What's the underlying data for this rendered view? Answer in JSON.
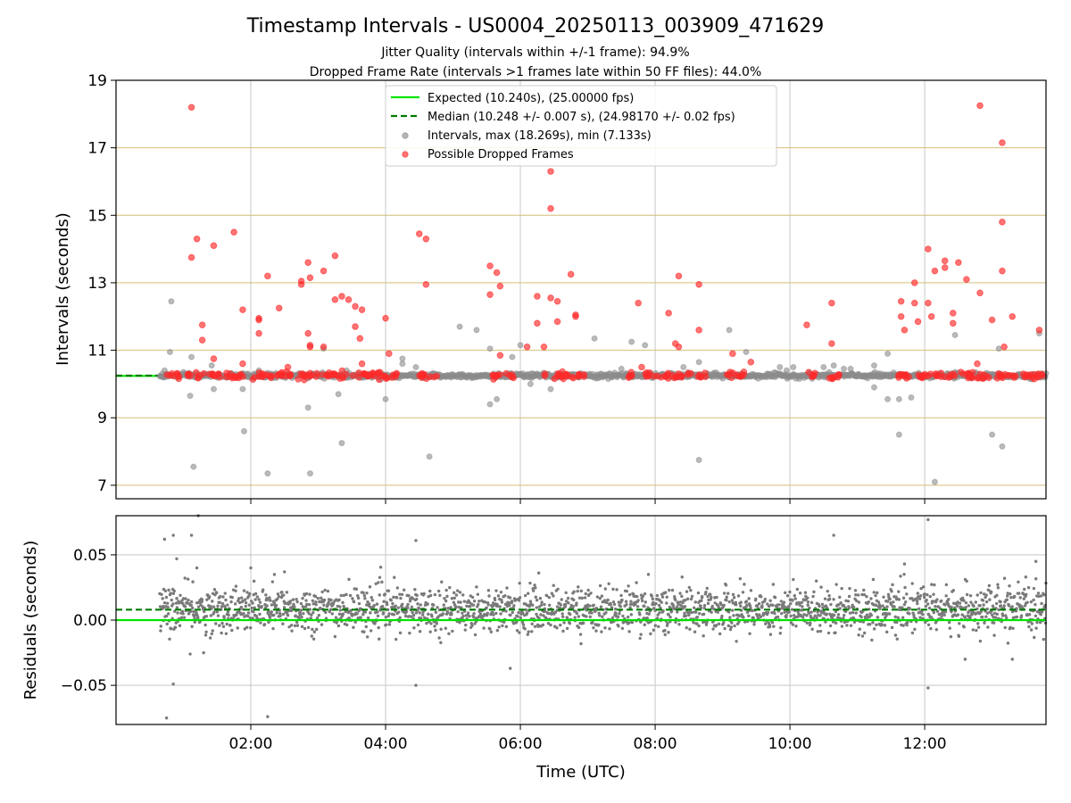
{
  "chart_data": {
    "type": "scatter",
    "title": "Timestamp Intervals - US0004_20250113_003909_471629",
    "subtitles": [
      "Jitter Quality (intervals within +/-1 frame): 94.9%",
      "Dropped Frame Rate (intervals >1 frames late within 50 FF files): 44.0%"
    ],
    "xlabel": "Time (UTC)",
    "x_ticks": [
      "02:00",
      "04:00",
      "06:00",
      "08:00",
      "10:00",
      "12:00"
    ],
    "x_tick_hours": [
      2,
      4,
      6,
      8,
      10,
      12
    ],
    "xlim_hours": [
      0,
      13.8
    ],
    "data_start_hour": 0.65,
    "top_panel": {
      "ylabel": "Intervals (seconds)",
      "ylim": [
        6.6,
        19
      ],
      "y_ticks": [
        "7",
        "9",
        "11",
        "13",
        "15",
        "17",
        "19"
      ],
      "y_tick_values": [
        7,
        9,
        11,
        13,
        15,
        17,
        19
      ],
      "grid": true,
      "hline_color": "#d4be7a",
      "expected_value": 10.24,
      "median_value": 10.248,
      "legend": [
        {
          "label": "Expected (10.240s), (25.00000 fps)",
          "style": "line",
          "color": "#00e400"
        },
        {
          "label": "Median (10.248 +/- 0.007 s), (24.98170 +/- 0.02 fps)",
          "style": "dashed",
          "color": "#007a00"
        },
        {
          "label": "Intervals, max (18.269s), min (7.133s)",
          "style": "dot",
          "color": "#8c8c8c"
        },
        {
          "label": "Possible Dropped Frames",
          "style": "dot",
          "color": "#ff2a2a"
        }
      ],
      "legend_position": "top-center",
      "dropped_frames": [
        [
          1.12,
          18.2
        ],
        [
          1.12,
          13.75
        ],
        [
          1.2,
          14.3
        ],
        [
          1.28,
          11.75
        ],
        [
          1.28,
          11.3
        ],
        [
          1.45,
          14.1
        ],
        [
          1.45,
          10.75
        ],
        [
          1.75,
          14.5
        ],
        [
          1.88,
          12.2
        ],
        [
          1.88,
          10.6
        ],
        [
          2.12,
          11.95
        ],
        [
          2.12,
          11.9
        ],
        [
          2.12,
          11.5
        ],
        [
          2.25,
          13.2
        ],
        [
          2.42,
          12.25
        ],
        [
          2.55,
          10.5
        ],
        [
          2.75,
          13.05
        ],
        [
          2.75,
          12.95
        ],
        [
          2.85,
          13.6
        ],
        [
          2.85,
          11.5
        ],
        [
          2.88,
          13.15
        ],
        [
          2.88,
          11.15
        ],
        [
          2.88,
          11.1
        ],
        [
          3.08,
          13.35
        ],
        [
          3.08,
          11.1
        ],
        [
          3.25,
          13.8
        ],
        [
          3.25,
          12.5
        ],
        [
          3.35,
          12.6
        ],
        [
          3.45,
          12.5
        ],
        [
          3.55,
          12.3
        ],
        [
          3.55,
          11.7
        ],
        [
          3.62,
          11.35
        ],
        [
          3.65,
          12.2
        ],
        [
          3.65,
          10.6
        ],
        [
          4.0,
          11.95
        ],
        [
          4.05,
          10.9
        ],
        [
          4.5,
          14.45
        ],
        [
          4.6,
          14.3
        ],
        [
          4.6,
          12.95
        ],
        [
          5.55,
          13.5
        ],
        [
          5.55,
          12.65
        ],
        [
          5.65,
          13.3
        ],
        [
          5.7,
          12.9
        ],
        [
          5.7,
          10.85
        ],
        [
          6.1,
          11.1
        ],
        [
          6.25,
          12.6
        ],
        [
          6.25,
          11.8
        ],
        [
          6.35,
          11.1
        ],
        [
          6.45,
          16.3
        ],
        [
          6.45,
          15.2
        ],
        [
          6.45,
          12.55
        ],
        [
          6.55,
          12.45
        ],
        [
          6.55,
          11.85
        ],
        [
          6.75,
          13.25
        ],
        [
          6.82,
          12.05
        ],
        [
          6.82,
          12.0
        ],
        [
          7.75,
          12.4
        ],
        [
          7.8,
          10.5
        ],
        [
          8.2,
          12.1
        ],
        [
          8.3,
          11.2
        ],
        [
          8.35,
          13.2
        ],
        [
          8.35,
          11.1
        ],
        [
          8.65,
          12.95
        ],
        [
          8.65,
          11.6
        ],
        [
          9.15,
          10.9
        ],
        [
          9.42,
          10.65
        ],
        [
          10.25,
          11.75
        ],
        [
          10.62,
          12.4
        ],
        [
          10.62,
          11.2
        ],
        [
          11.65,
          12.45
        ],
        [
          11.65,
          12.0
        ],
        [
          11.7,
          11.6
        ],
        [
          11.85,
          13.0
        ],
        [
          11.85,
          12.4
        ],
        [
          11.9,
          11.85
        ],
        [
          12.05,
          14.0
        ],
        [
          12.05,
          12.4
        ],
        [
          12.1,
          12.0
        ],
        [
          12.15,
          13.35
        ],
        [
          12.3,
          13.65
        ],
        [
          12.3,
          13.45
        ],
        [
          12.42,
          11.8
        ],
        [
          12.42,
          12.1
        ],
        [
          12.5,
          13.6
        ],
        [
          12.62,
          13.1
        ],
        [
          12.78,
          10.6
        ],
        [
          12.82,
          18.25
        ],
        [
          12.82,
          12.7
        ],
        [
          13.0,
          11.9
        ],
        [
          13.15,
          17.15
        ],
        [
          13.15,
          14.8
        ],
        [
          13.15,
          13.35
        ],
        [
          13.18,
          11.1
        ],
        [
          13.3,
          12.0
        ],
        [
          13.7,
          11.6
        ]
      ],
      "outlier_intervals": [
        [
          0.72,
          10.4
        ],
        [
          0.8,
          10.95
        ],
        [
          0.82,
          12.45
        ],
        [
          1.1,
          9.65
        ],
        [
          1.12,
          10.8
        ],
        [
          1.15,
          7.55
        ],
        [
          1.3,
          10.3
        ],
        [
          1.42,
          10.55
        ],
        [
          1.45,
          9.85
        ],
        [
          1.88,
          9.85
        ],
        [
          1.9,
          8.6
        ],
        [
          2.12,
          10.4
        ],
        [
          2.25,
          7.35
        ],
        [
          2.85,
          9.3
        ],
        [
          2.88,
          7.35
        ],
        [
          3.08,
          11.05
        ],
        [
          3.3,
          9.7
        ],
        [
          3.35,
          8.25
        ],
        [
          3.42,
          10.4
        ],
        [
          4.0,
          9.55
        ],
        [
          4.25,
          10.6
        ],
        [
          4.25,
          10.75
        ],
        [
          4.45,
          10.5
        ],
        [
          4.65,
          7.85
        ],
        [
          5.1,
          11.7
        ],
        [
          5.35,
          11.6
        ],
        [
          5.55,
          9.4
        ],
        [
          5.55,
          11.05
        ],
        [
          5.65,
          9.55
        ],
        [
          5.88,
          10.8
        ],
        [
          6.0,
          11.15
        ],
        [
          6.15,
          10.0
        ],
        [
          6.45,
          9.85
        ],
        [
          7.1,
          11.35
        ],
        [
          7.5,
          10.45
        ],
        [
          7.65,
          11.25
        ],
        [
          7.85,
          11.15
        ],
        [
          8.25,
          10.3
        ],
        [
          8.42,
          10.5
        ],
        [
          8.65,
          10.65
        ],
        [
          8.65,
          7.75
        ],
        [
          9.1,
          11.6
        ],
        [
          9.35,
          10.95
        ],
        [
          9.85,
          10.5
        ],
        [
          9.95,
          10.4
        ],
        [
          10.05,
          10.5
        ],
        [
          10.5,
          10.5
        ],
        [
          10.65,
          10.55
        ],
        [
          10.8,
          10.45
        ],
        [
          10.9,
          10.45
        ],
        [
          11.25,
          10.55
        ],
        [
          11.25,
          9.9
        ],
        [
          11.45,
          10.9
        ],
        [
          11.45,
          9.55
        ],
        [
          11.62,
          8.5
        ],
        [
          11.62,
          9.55
        ],
        [
          11.8,
          9.6
        ],
        [
          12.15,
          7.1
        ],
        [
          12.45,
          11.45
        ],
        [
          12.45,
          10.35
        ],
        [
          13.0,
          8.5
        ],
        [
          13.15,
          8.15
        ],
        [
          13.1,
          11.05
        ],
        [
          13.7,
          11.5
        ]
      ]
    },
    "bottom_panel": {
      "ylabel": "Residuals (seconds)",
      "ylim": [
        -0.08,
        0.08
      ],
      "y_ticks": [
        "−0.05",
        "0.00",
        "0.05"
      ],
      "y_tick_values": [
        -0.05,
        0.0,
        0.05
      ],
      "grid": true,
      "expected_residual": 0.0,
      "median_residual": 0.008,
      "residual_outliers": [
        [
          0.72,
          0.062
        ],
        [
          0.75,
          -0.075
        ],
        [
          0.85,
          0.065
        ],
        [
          0.9,
          0.047
        ],
        [
          0.85,
          -0.049
        ],
        [
          1.12,
          0.065
        ],
        [
          1.22,
          0.08
        ],
        [
          1.2,
          0.04
        ],
        [
          1.1,
          -0.026
        ],
        [
          1.3,
          -0.025
        ],
        [
          2.0,
          0.04
        ],
        [
          2.25,
          -0.074
        ],
        [
          2.35,
          0.035
        ],
        [
          2.5,
          0.037
        ],
        [
          4.45,
          0.061
        ],
        [
          4.45,
          -0.05
        ],
        [
          5.85,
          -0.037
        ],
        [
          7.9,
          0.035
        ],
        [
          8.4,
          0.033
        ],
        [
          10.65,
          0.065
        ],
        [
          11.7,
          0.043
        ],
        [
          12.05,
          0.077
        ],
        [
          12.05,
          -0.052
        ],
        [
          13.65,
          0.045
        ],
        [
          13.3,
          -0.03
        ],
        [
          13.5,
          0.033
        ],
        [
          12.6,
          -0.03
        ]
      ]
    }
  }
}
